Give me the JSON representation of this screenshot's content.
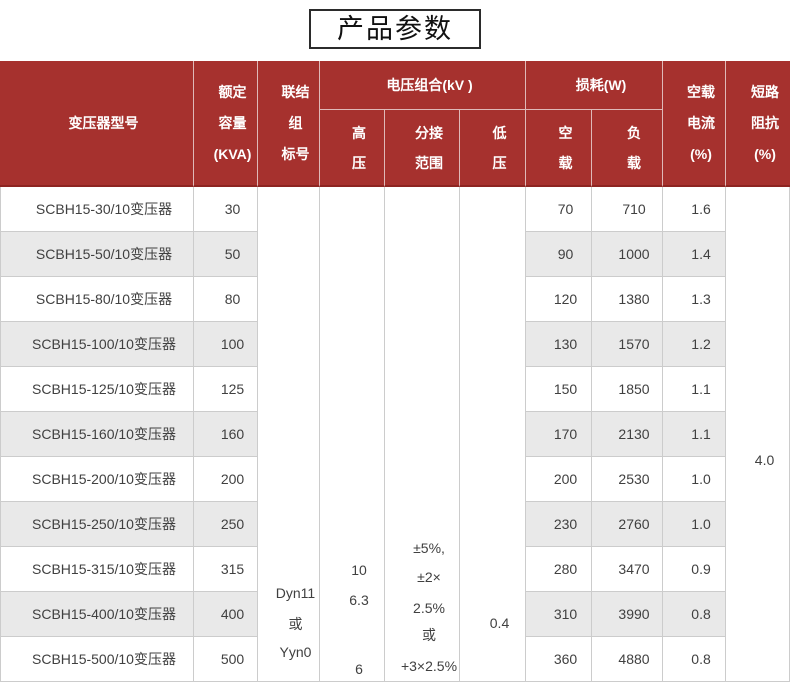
{
  "page_title": "产品参数",
  "colors": {
    "header_red": "#A6312E",
    "header_dark_line": "#8D2421",
    "header_divider": "#DFB9B8",
    "cell_border": "#CCCCCC",
    "stripe_gray": "#E9E9E9",
    "title_border": "#2B2B2B"
  },
  "table": {
    "header": {
      "model": "变压器型号",
      "capacity_lines": [
        "额定",
        "容量",
        "(KVA)"
      ],
      "connection_lines": [
        "联结",
        "组",
        "标号"
      ],
      "voltage_group": "电压组合(kV )",
      "hv_lines": [
        "高",
        "压"
      ],
      "tap_lines": [
        "分接",
        "范围"
      ],
      "lv_lines": [
        "低",
        "压"
      ],
      "loss_group": "损耗(W)",
      "no_load_lines": [
        "空",
        "载"
      ],
      "load_lines": [
        "负",
        "载"
      ],
      "no_load_current_lines": [
        "空载",
        "电流",
        "(%)"
      ],
      "impedance_lines": [
        "短路",
        "阻抗",
        "(%)"
      ]
    },
    "rows": [
      {
        "model": "SCBH15-30/10变压器",
        "capacity": "30",
        "no_load_loss": "70",
        "load_loss": "710",
        "no_load_current": "1.6"
      },
      {
        "model": "SCBH15-50/10变压器",
        "capacity": "50",
        "no_load_loss": "90",
        "load_loss": "1000",
        "no_load_current": "1.4"
      },
      {
        "model": "SCBH15-80/10变压器",
        "capacity": "80",
        "no_load_loss": "120",
        "load_loss": "1380",
        "no_load_current": "1.3"
      },
      {
        "model": "SCBH15-100/10变压器",
        "capacity": "100",
        "no_load_loss": "130",
        "load_loss": "1570",
        "no_load_current": "1.2"
      },
      {
        "model": "SCBH15-125/10变压器",
        "capacity": "125",
        "no_load_loss": "150",
        "load_loss": "1850",
        "no_load_current": "1.1"
      },
      {
        "model": "SCBH15-160/10变压器",
        "capacity": "160",
        "no_load_loss": "170",
        "load_loss": "2130",
        "no_load_current": "1.1"
      },
      {
        "model": "SCBH15-200/10变压器",
        "capacity": "200",
        "no_load_loss": "200",
        "load_loss": "2530",
        "no_load_current": "1.0"
      },
      {
        "model": "SCBH15-250/10变压器",
        "capacity": "250",
        "no_load_loss": "230",
        "load_loss": "2760",
        "no_load_current": "1.0"
      },
      {
        "model": "SCBH15-315/10变压器",
        "capacity": "315",
        "no_load_loss": "280",
        "load_loss": "3470",
        "no_load_current": "0.9"
      },
      {
        "model": "SCBH15-400/10变压器",
        "capacity": "400",
        "no_load_loss": "310",
        "load_loss": "3990",
        "no_load_current": "0.8"
      },
      {
        "model": "SCBH15-500/10变压器",
        "capacity": "500",
        "no_load_loss": "360",
        "load_loss": "4880",
        "no_load_current": "0.8"
      }
    ],
    "merged": {
      "connection_lines": [
        "Dyn11",
        "或",
        "Yyn0"
      ],
      "hv_lines": [
        "10",
        "6.3",
        "6"
      ],
      "tap_lines": [
        "±5%,",
        "±2×",
        "2.5%",
        "或",
        "+3×2.5%"
      ],
      "lv_lines": [
        "0.4"
      ],
      "impedance_lines": [
        "4.0"
      ]
    }
  }
}
